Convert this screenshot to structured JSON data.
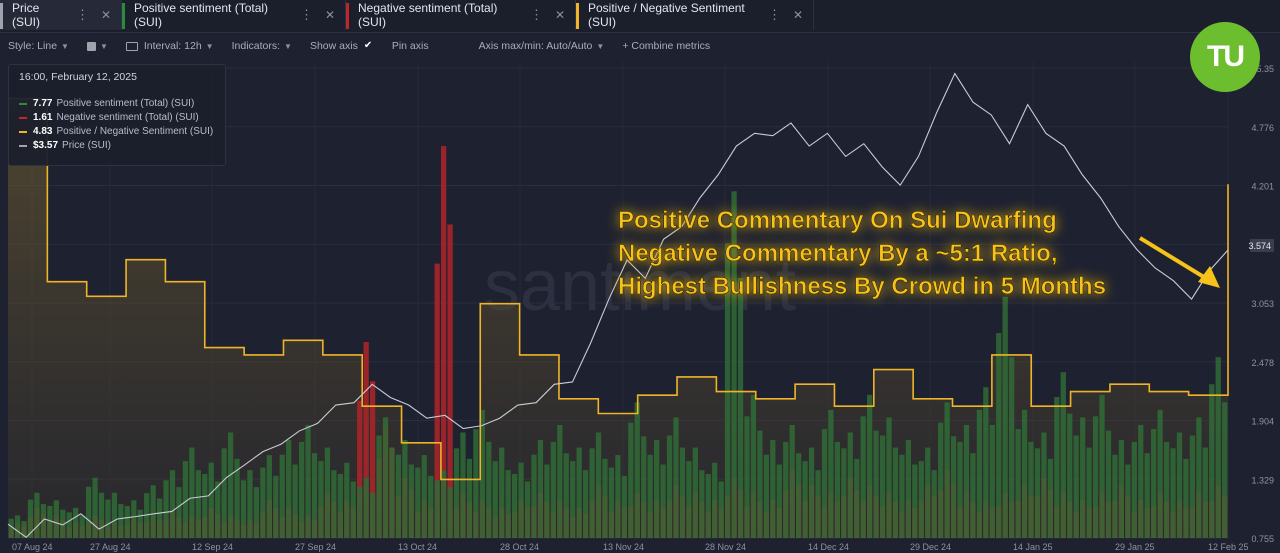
{
  "tabs": [
    {
      "label": "Price (SUI)",
      "color": "#9ea3ae"
    },
    {
      "label": "Positive sentiment (Total) (SUI)",
      "color": "#2e8b3c"
    },
    {
      "label": "Negative sentiment (Total) (SUI)",
      "color": "#c0262b"
    },
    {
      "label": "Positive / Negative Sentiment (SUI)",
      "color": "#f0b429"
    }
  ],
  "toolbar": {
    "style": "Style: Line",
    "interval": "Interval: 12h",
    "indicators": "Indicators:",
    "show_axis": "Show axis",
    "pin_axis": "Pin axis",
    "axis_maxmin": "Axis max/min: Auto/Auto",
    "combine": "+ Combine metrics"
  },
  "legend": {
    "date": "16:00, February 12, 2025",
    "rows": [
      {
        "value": "7.77",
        "name": "Positive sentiment (Total) (SUI)",
        "color": "#2e8b3c"
      },
      {
        "value": "1.61",
        "name": "Negative sentiment (Total) (SUI)",
        "color": "#c0262b"
      },
      {
        "value": "4.83",
        "name": "Positive / Negative Sentiment (SUI)",
        "color": "#f0b429"
      },
      {
        "value": "$3.57",
        "name": "Price (SUI)",
        "color": "#9ea3ae"
      }
    ]
  },
  "logo": {
    "text": "TU"
  },
  "chart_data": {
    "type": "line",
    "watermark": "santiment",
    "annotation": [
      "Positive Commentary On Sui Dwarfing",
      "Negative Commentary By a ~5:1 Ratio,",
      "Highest Bullishness By Crowd in 5 Months"
    ],
    "xticks": [
      "07 Aug 24",
      "27 Aug 24",
      "12 Sep 24",
      "27 Sep 24",
      "13 Oct 24",
      "28 Oct 24",
      "13 Nov 24",
      "28 Nov 24",
      "14 Dec 24",
      "29 Dec 24",
      "14 Jan 25",
      "29 Jan 25",
      "12 Feb 25"
    ],
    "yticks": [
      "5.35",
      "4.776",
      "4.201",
      "3.627",
      "3.053",
      "2.478",
      "1.904",
      "1.329",
      "0.755"
    ],
    "yrange": [
      0.755,
      5.35
    ],
    "current_price_label": "3.574",
    "price_series": [
      0.85,
      0.8,
      0.9,
      0.92,
      0.95,
      0.88,
      0.9,
      1.0,
      0.95,
      1.05,
      1.1,
      1.2,
      1.3,
      1.5,
      1.55,
      1.7,
      1.75,
      1.9,
      2.0,
      2.1,
      2.2,
      2.15,
      2.0,
      1.95,
      1.9,
      1.85,
      1.8,
      1.95,
      2.0,
      2.1,
      2.2,
      2.3,
      2.6,
      3.1,
      3.4,
      3.3,
      3.6,
      3.8,
      4.0,
      4.3,
      4.5,
      4.7,
      4.6,
      4.8,
      4.5,
      4.7,
      4.4,
      4.6,
      4.3,
      4.2,
      4.4,
      4.9,
      5.2,
      5.0,
      4.8,
      4.6,
      4.9,
      4.7,
      4.5,
      4.3,
      4.0,
      3.8,
      3.5,
      3.4,
      3.2,
      3.1,
      3.3,
      3.574
    ],
    "ratio_series": [
      6.0,
      6.0,
      3.5,
      3.5,
      3.3,
      3.3,
      3.8,
      3.8,
      3.5,
      3.5,
      2.6,
      2.6,
      2.5,
      2.5,
      2.7,
      2.7,
      2.5,
      2.5,
      1.8,
      1.8,
      1.3,
      1.3,
      0.8,
      0.8,
      3.2,
      3.2,
      2.5,
      2.5,
      1.9,
      1.9,
      1.7,
      1.7,
      1.95,
      1.95,
      2.2,
      2.2,
      2.0,
      2.0,
      1.9,
      1.9,
      2.1,
      2.1,
      1.8,
      1.8,
      2.3,
      2.3,
      1.9,
      1.9,
      1.8,
      1.8,
      2.5,
      2.5,
      1.8,
      1.8,
      2.0,
      2.0,
      2.1,
      2.1,
      2.0,
      2.0,
      1.95,
      1.95,
      4.83
    ],
    "positive_bars": [
      0.3,
      0.6,
      0.5,
      0.4,
      0.8,
      0.6,
      0.5,
      0.7,
      0.9,
      1.2,
      1.0,
      1.4,
      0.9,
      1.1,
      1.3,
      1.5,
      1.2,
      1.0,
      0.8,
      1.6,
      1.3,
      1.1,
      0.9,
      1.4,
      1.7,
      1.2,
      1.0,
      1.3,
      1.5,
      1.2,
      1.4,
      1.1,
      1.8,
      1.3,
      1.6,
      1.2,
      1.0,
      4.6,
      1.9,
      1.3,
      1.5,
      1.2,
      1.7,
      1.4,
      1.9,
      1.6,
      1.3,
      1.2,
      1.8,
      1.5,
      2.0,
      3.2,
      1.7,
      1.4,
      2.2,
      1.6,
      1.9,
      1.3,
      1.5,
      1.7,
      1.4,
      1.6,
      2.4
    ],
    "negative_bars": [
      0.2,
      0.4,
      0.3,
      0.2,
      0.3,
      0.2,
      0.25,
      0.3,
      0.35,
      0.3,
      0.4,
      0.3,
      0.25,
      0.5,
      0.4,
      0.3,
      0.6,
      0.5,
      2.6,
      1.5,
      0.8,
      0.5,
      5.2,
      0.6,
      0.5,
      0.4,
      0.5,
      0.6,
      0.5,
      0.4,
      0.7,
      0.5,
      0.6,
      0.5,
      0.7,
      0.6,
      0.5,
      0.8,
      0.6,
      0.5,
      0.9,
      0.7,
      0.6,
      0.8,
      0.7,
      0.6,
      0.5,
      0.7,
      0.9,
      0.6,
      0.5,
      0.6,
      0.7,
      0.8,
      0.6,
      0.5,
      0.6,
      0.7,
      0.5,
      0.6,
      0.5,
      0.6,
      0.7
    ]
  }
}
